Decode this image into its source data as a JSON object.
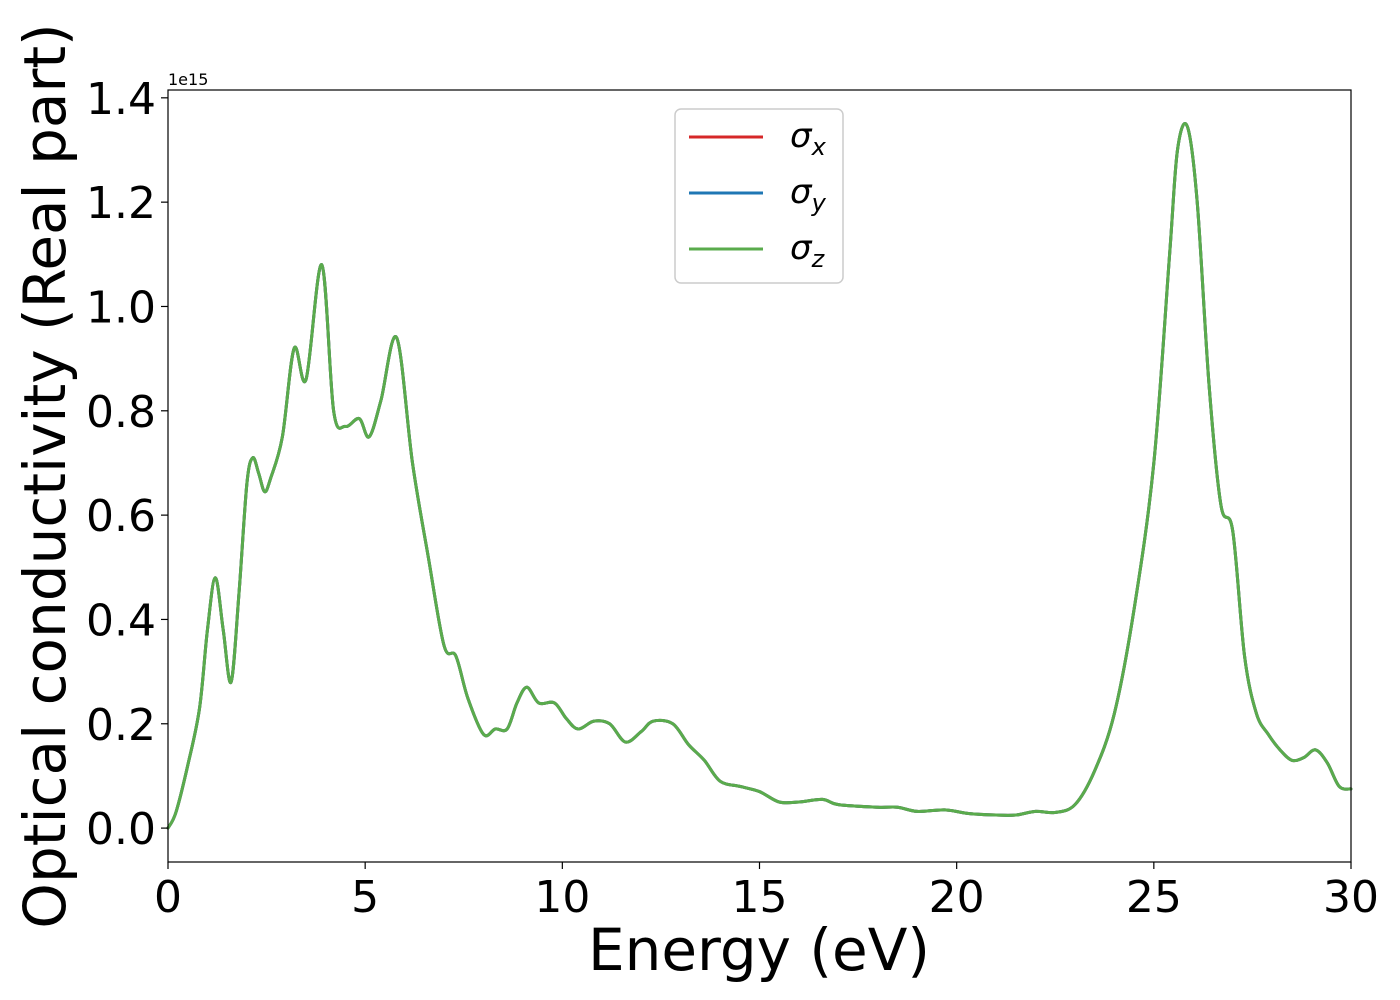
{
  "chart_data": {
    "type": "line",
    "title": "",
    "xlabel": "Energy (eV)",
    "ylabel": "Optical conductivity (Real part)",
    "y_offset_text": "1e15",
    "y_scale_factor": 1000000000000000.0,
    "xlim": [
      0,
      30
    ],
    "ylim": [
      -0.065,
      1.415
    ],
    "xticks": [
      0,
      5,
      10,
      15,
      20,
      25,
      30
    ],
    "xtick_labels": [
      "0",
      "5",
      "10",
      "15",
      "20",
      "25",
      "30"
    ],
    "yticks": [
      0.0,
      0.2,
      0.4,
      0.6,
      0.8,
      1.0,
      1.2,
      1.4
    ],
    "ytick_labels": [
      "0.0",
      "0.2",
      "0.4",
      "0.6",
      "0.8",
      "1.0",
      "1.2",
      "1.4"
    ],
    "grid": false,
    "legend_position": "top-center",
    "x": [
      0,
      0.2,
      0.5,
      0.8,
      1.0,
      1.2,
      1.4,
      1.6,
      1.8,
      2.0,
      2.15,
      2.3,
      2.45,
      2.6,
      2.9,
      3.2,
      3.5,
      3.9,
      4.2,
      4.5,
      4.85,
      5.1,
      5.4,
      5.8,
      6.2,
      6.6,
      7.0,
      7.3,
      7.6,
      8.0,
      8.3,
      8.6,
      8.85,
      9.1,
      9.4,
      9.8,
      10.1,
      10.4,
      10.8,
      11.2,
      11.6,
      12.0,
      12.3,
      12.8,
      13.2,
      13.6,
      14.0,
      14.5,
      15.0,
      15.5,
      16.0,
      16.6,
      17.0,
      18.0,
      18.5,
      19.0,
      19.7,
      20.3,
      21.0,
      21.5,
      22.0,
      22.5,
      23.0,
      23.5,
      24.0,
      24.5,
      25.0,
      25.4,
      25.6,
      25.85,
      26.1,
      26.4,
      26.7,
      27.0,
      27.3,
      27.6,
      27.9,
      28.2,
      28.5,
      28.8,
      29.1,
      29.4,
      29.7,
      30.0
    ],
    "series": [
      {
        "name": "σx",
        "subscript": "x",
        "color": "#d62728",
        "values": [
          0.0,
          0.03,
          0.12,
          0.23,
          0.38,
          0.48,
          0.38,
          0.28,
          0.45,
          0.66,
          0.71,
          0.68,
          0.645,
          0.67,
          0.75,
          0.92,
          0.86,
          1.08,
          0.8,
          0.77,
          0.785,
          0.75,
          0.82,
          0.94,
          0.7,
          0.52,
          0.35,
          0.33,
          0.25,
          0.18,
          0.19,
          0.19,
          0.24,
          0.27,
          0.24,
          0.24,
          0.21,
          0.19,
          0.205,
          0.2,
          0.165,
          0.185,
          0.205,
          0.2,
          0.16,
          0.13,
          0.09,
          0.08,
          0.07,
          0.05,
          0.05,
          0.055,
          0.045,
          0.04,
          0.04,
          0.032,
          0.035,
          0.028,
          0.025,
          0.025,
          0.032,
          0.03,
          0.045,
          0.11,
          0.22,
          0.42,
          0.7,
          1.1,
          1.3,
          1.345,
          1.2,
          0.85,
          0.62,
          0.57,
          0.33,
          0.22,
          0.18,
          0.15,
          0.13,
          0.135,
          0.15,
          0.125,
          0.08,
          0.075
        ]
      },
      {
        "name": "σy",
        "subscript": "y",
        "color": "#1f77b4",
        "values": [
          0.0,
          0.03,
          0.12,
          0.23,
          0.38,
          0.48,
          0.38,
          0.28,
          0.45,
          0.66,
          0.71,
          0.68,
          0.645,
          0.67,
          0.75,
          0.92,
          0.86,
          1.08,
          0.8,
          0.77,
          0.785,
          0.75,
          0.82,
          0.94,
          0.7,
          0.52,
          0.35,
          0.33,
          0.25,
          0.18,
          0.19,
          0.19,
          0.24,
          0.27,
          0.24,
          0.24,
          0.21,
          0.19,
          0.205,
          0.2,
          0.165,
          0.185,
          0.205,
          0.2,
          0.16,
          0.13,
          0.09,
          0.08,
          0.07,
          0.05,
          0.05,
          0.055,
          0.045,
          0.04,
          0.04,
          0.032,
          0.035,
          0.028,
          0.025,
          0.025,
          0.032,
          0.03,
          0.045,
          0.11,
          0.22,
          0.42,
          0.7,
          1.1,
          1.3,
          1.345,
          1.2,
          0.85,
          0.62,
          0.57,
          0.33,
          0.22,
          0.18,
          0.15,
          0.13,
          0.135,
          0.15,
          0.125,
          0.08,
          0.075
        ]
      },
      {
        "name": "σz",
        "subscript": "z",
        "color": "#5aab4c",
        "values": [
          0.0,
          0.03,
          0.12,
          0.23,
          0.38,
          0.48,
          0.38,
          0.28,
          0.45,
          0.66,
          0.71,
          0.68,
          0.645,
          0.67,
          0.75,
          0.92,
          0.86,
          1.08,
          0.8,
          0.77,
          0.785,
          0.75,
          0.82,
          0.94,
          0.7,
          0.52,
          0.35,
          0.33,
          0.25,
          0.18,
          0.19,
          0.19,
          0.24,
          0.27,
          0.24,
          0.24,
          0.21,
          0.19,
          0.205,
          0.2,
          0.165,
          0.185,
          0.205,
          0.2,
          0.16,
          0.13,
          0.09,
          0.08,
          0.07,
          0.05,
          0.05,
          0.055,
          0.045,
          0.04,
          0.04,
          0.032,
          0.035,
          0.028,
          0.025,
          0.025,
          0.032,
          0.03,
          0.045,
          0.11,
          0.22,
          0.42,
          0.7,
          1.1,
          1.3,
          1.345,
          1.2,
          0.85,
          0.62,
          0.57,
          0.33,
          0.22,
          0.18,
          0.15,
          0.13,
          0.135,
          0.15,
          0.125,
          0.08,
          0.075
        ]
      }
    ]
  }
}
